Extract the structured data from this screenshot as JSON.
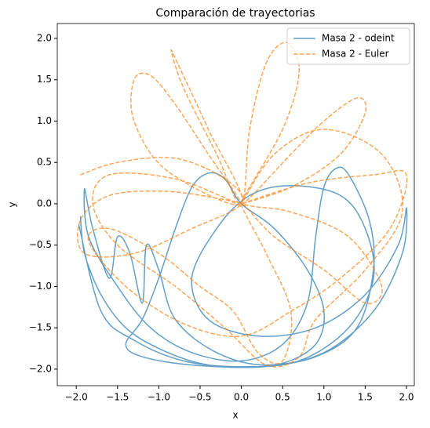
{
  "chart_data": {
    "type": "line",
    "title": "Comparación de trayectorias",
    "xlabel": "x",
    "ylabel": "y",
    "xlim": [
      -2.23,
      2.095
    ],
    "ylim": [
      -2.2,
      2.18
    ],
    "xticks": [
      {
        "value": -2.0,
        "label": "−2.0"
      },
      {
        "value": -1.5,
        "label": "−1.5"
      },
      {
        "value": -1.0,
        "label": "−1.0"
      },
      {
        "value": -0.5,
        "label": "−0.5"
      },
      {
        "value": 0.0,
        "label": "0.0"
      },
      0.5,
      {
        "value": 1.0,
        "label": "1.0"
      },
      1.5,
      {
        "value": 2.0,
        "label": "2.0"
      }
    ],
    "yticks": [
      {
        "value": -2.0,
        "label": "−2.0"
      },
      {
        "value": -1.5,
        "label": "−1.5"
      },
      {
        "value": -1.0,
        "label": "−1.0"
      },
      {
        "value": -0.5,
        "label": "−0.5"
      },
      {
        "value": 0.0,
        "label": "0.0"
      },
      0.5,
      {
        "value": 1.0,
        "label": "1.0"
      },
      1.5,
      {
        "value": 2.0,
        "label": "2.0"
      }
    ],
    "legend": "upper right",
    "series": [
      {
        "name": "Masa 2 - odeint",
        "color": "#1f77b4",
        "linestyle": "solid",
        "x": [
          -1.95,
          -1.9,
          -1.7,
          -1.4,
          -1.0,
          -0.5,
          0,
          0.5,
          0.9,
          1.0,
          0.8,
          0.4,
          0,
          -0.2,
          -0.4,
          -0.6,
          -0.8,
          -1.0,
          -1.2,
          -1.4,
          -1.2,
          -0.6,
          0.2,
          0.9,
          1.4,
          1.6,
          1.55,
          1.3,
          1.15,
          1.0,
          0.9,
          0.8,
          0.5,
          0,
          -0.6,
          -1.1,
          -1.5,
          -1.85,
          -1.9,
          -1.8,
          -1.6,
          -1.5,
          -1.35,
          -1.2,
          -1.15,
          -1.0,
          -0.8,
          -0.3,
          0.3,
          1.0,
          1.6,
          1.95,
          2.0,
          1.9,
          1.5,
          0.9,
          0.2,
          -0.4,
          -0.6,
          -0.3,
          0.1,
          0.6,
          1.2,
          1.5,
          1.6,
          1.3,
          0.7,
          0,
          -0.7,
          -1.3,
          -1.7,
          -1.97
        ],
        "values": [
          -0.15,
          -0.6,
          -1.1,
          -1.5,
          -1.75,
          -1.93,
          -1.98,
          -1.93,
          -1.7,
          -1.3,
          -0.8,
          -0.3,
          0,
          0.3,
          0.37,
          0.2,
          -0.3,
          -0.9,
          -1.4,
          -1.7,
          -1.85,
          -1.95,
          -1.97,
          -1.85,
          -1.5,
          -0.8,
          -0.2,
          0.35,
          0.43,
          0.2,
          -0.4,
          -1.2,
          -1.7,
          -1.9,
          -1.8,
          -1.5,
          -1.0,
          -0.4,
          0.18,
          -0.3,
          -0.9,
          -0.4,
          -0.6,
          -1.2,
          -0.5,
          -0.8,
          -1.4,
          -1.8,
          -1.95,
          -1.8,
          -1.3,
          -0.6,
          -0.05,
          -0.5,
          -1.1,
          -1.5,
          -1.6,
          -1.4,
          -0.9,
          -0.3,
          0.1,
          0.22,
          0.1,
          -0.3,
          -0.9,
          -1.5,
          -1.9,
          -1.97,
          -1.9,
          -1.65,
          -1.3,
          -0.25
        ]
      },
      {
        "name": "Masa 2 - Euler",
        "color": "#ff7f0e",
        "linestyle": "dashed",
        "x": [
          -1.95,
          -1.5,
          -0.8,
          -0.2,
          0,
          -0.6,
          -1.3,
          -1.9,
          -1.95,
          -1.6,
          -0.9,
          -0.2,
          0,
          -0.4,
          -0.8,
          -1.1,
          -1.3,
          -1.3,
          -0.9,
          0,
          -0.4,
          -0.75,
          -0.85,
          -0.7,
          -0.3,
          0,
          0.1,
          0.3,
          0.55,
          0.7,
          0.5,
          0,
          0.6,
          1.0,
          1.4,
          1.5,
          1.2,
          0.6,
          0,
          0.8,
          1.6,
          2.0,
          1.8,
          1.2,
          0.6,
          0.0,
          -0.7,
          -1.4,
          -1.85,
          -1.6,
          -1.0,
          -0.5,
          -0.1,
          0.2,
          0.5,
          0.6,
          0.3,
          0,
          0.4,
          1.0,
          1.5,
          1.7,
          1.3,
          0.6,
          0,
          -0.8,
          -1.6,
          -1.8,
          -1.5,
          -0.8,
          -0.2,
          0.3,
          0.7,
          0.9,
          1.5,
          1.95,
          1.7,
          1.0,
          0.4,
          0
        ],
        "values": [
          0.35,
          0.5,
          0.55,
          0.3,
          0,
          -0.3,
          -0.6,
          -0.6,
          -0.2,
          0.1,
          0.15,
          0.05,
          0,
          0.6,
          1.2,
          1.55,
          1.5,
          1.0,
          0.4,
          0,
          0.9,
          1.65,
          1.85,
          1.4,
          0.6,
          0,
          0.9,
          1.7,
          1.95,
          1.6,
          0.9,
          0,
          0.6,
          1.0,
          1.28,
          1.1,
          0.6,
          0.2,
          0,
          0.25,
          0.35,
          0.35,
          -0.3,
          -0.9,
          -1.3,
          -1.6,
          -1.45,
          -1.0,
          -0.45,
          -0.3,
          -0.6,
          -1.0,
          -1.3,
          -1.8,
          -1.9,
          -1.3,
          -0.6,
          0,
          -0.4,
          -0.8,
          -1.2,
          -1.0,
          -0.4,
          -0.1,
          0,
          0.3,
          0.35,
          0.0,
          -0.5,
          -1.0,
          -1.5,
          -1.95,
          -1.85,
          -1.4,
          -0.8,
          -0.1,
          0.6,
          0.9,
          0.6,
          0
        ]
      }
    ]
  }
}
